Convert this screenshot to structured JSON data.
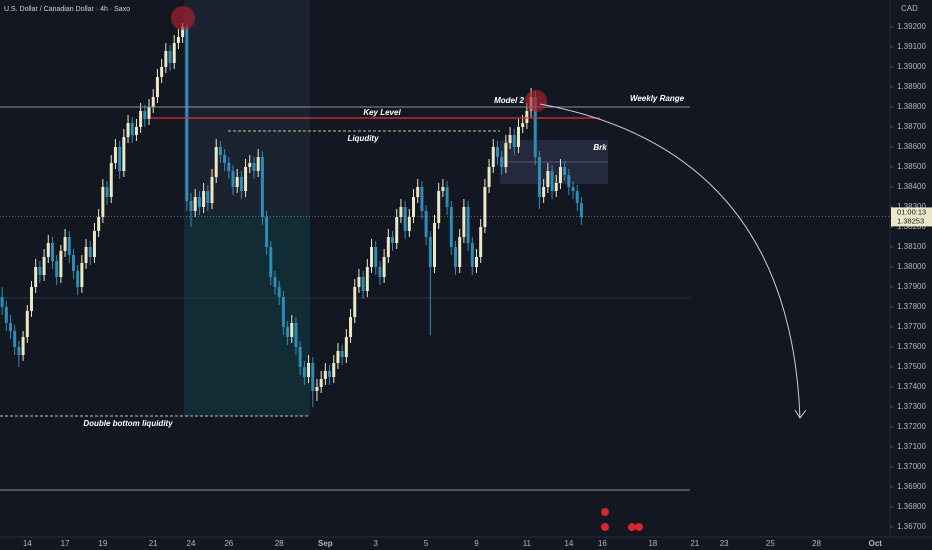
{
  "chart_data": {
    "type": "candlestick",
    "title": "U.S. Dollar / Canadian Dollar · 4h · Saxo",
    "currency": "CAD",
    "up_color": "#ece8c6",
    "down_color": "#2e8db5",
    "ylim": [
      1.3665,
      1.39335
    ],
    "yticks": [
      {
        "value": 1.392,
        "label": "1.39200"
      },
      {
        "value": 1.391,
        "label": "1.39100"
      },
      {
        "value": 1.39,
        "label": "1.39000"
      },
      {
        "value": 1.389,
        "label": "1.38900"
      },
      {
        "value": 1.388,
        "label": "1.38800"
      },
      {
        "value": 1.387,
        "label": "1.38700"
      },
      {
        "value": 1.386,
        "label": "1.38600"
      },
      {
        "value": 1.385,
        "label": "1.38500"
      },
      {
        "value": 1.384,
        "label": "1.38400"
      },
      {
        "value": 1.383,
        "label": "1.38300"
      },
      {
        "value": 1.382,
        "label": "1.38200"
      },
      {
        "value": 1.381,
        "label": "1.38100"
      },
      {
        "value": 1.38,
        "label": "1.38000"
      },
      {
        "value": 1.379,
        "label": "1.37900"
      },
      {
        "value": 1.378,
        "label": "1.37800"
      },
      {
        "value": 1.377,
        "label": "1.37700"
      },
      {
        "value": 1.376,
        "label": "1.37600"
      },
      {
        "value": 1.375,
        "label": "1.37500"
      },
      {
        "value": 1.374,
        "label": "1.37400"
      },
      {
        "value": 1.373,
        "label": "1.37300"
      },
      {
        "value": 1.372,
        "label": "1.37200"
      },
      {
        "value": 1.371,
        "label": "1.37100"
      },
      {
        "value": 1.37,
        "label": "1.37000"
      },
      {
        "value": 1.369,
        "label": "1.36900"
      },
      {
        "value": 1.368,
        "label": "1.36800"
      },
      {
        "value": 1.367,
        "label": "1.36700"
      }
    ],
    "current_price": {
      "value": 1.38253,
      "label": "1.38253",
      "countdown": "01:00:13"
    },
    "annotations": {
      "key_level": "Key Level",
      "liquidity": "Liqudity",
      "model": "Model 2",
      "weekly_range": "Weekly Range",
      "break": "Brk",
      "double_bottom": "Double bottom liquidity"
    },
    "categories": [
      null,
      null,
      null,
      null,
      null,
      null,
      "14",
      null,
      null,
      null,
      null,
      null,
      null,
      null,
      null,
      "17",
      null,
      null,
      null,
      null,
      null,
      null,
      null,
      null,
      "19",
      null,
      null,
      null,
      null,
      null,
      null,
      null,
      null,
      null,
      null,
      null,
      "21",
      null,
      null,
      null,
      null,
      null,
      null,
      null,
      null,
      "24",
      null,
      null,
      null,
      null,
      null,
      null,
      null,
      null,
      "26",
      null,
      null,
      null,
      null,
      null,
      null,
      null,
      null,
      null,
      null,
      null,
      "28",
      null,
      null,
      null,
      null,
      null,
      null,
      null,
      null,
      null,
      null,
      "Sep",
      null,
      null,
      null,
      null,
      null,
      null,
      null,
      null,
      null,
      null,
      null,
      "3",
      null,
      null,
      null,
      null,
      null,
      null,
      null,
      null,
      null,
      null,
      null,
      "5",
      null,
      null,
      null,
      null,
      null,
      null,
      null,
      null,
      null,
      null,
      null,
      "9",
      null,
      null,
      null,
      null,
      null,
      null,
      null,
      null,
      null,
      null,
      null,
      "11",
      null,
      null,
      null,
      null,
      null,
      null,
      null,
      null,
      null,
      "14",
      null,
      null,
      null,
      null,
      null,
      null,
      null,
      "16",
      null,
      null,
      null,
      null,
      null,
      null,
      null,
      null,
      null,
      null,
      null,
      "18",
      null,
      null,
      null,
      null,
      null,
      null,
      null,
      null,
      null,
      "21",
      null,
      null,
      null,
      null,
      null,
      null,
      "23",
      null,
      null,
      null,
      null,
      null,
      null,
      null,
      null,
      null,
      null,
      "25",
      null,
      null,
      null,
      null,
      null,
      null,
      null,
      null,
      null,
      null,
      "28",
      null,
      null,
      null,
      null,
      null,
      null,
      null,
      null,
      null,
      null,
      null,
      null,
      null,
      "Oct",
      null,
      null,
      null
    ],
    "candles": [
      [
        1.3785,
        1.379,
        1.3776,
        1.378
      ],
      [
        1.378,
        1.3783,
        1.3768,
        1.3772
      ],
      [
        1.3772,
        1.3776,
        1.3764,
        1.3768
      ],
      [
        1.3768,
        1.3771,
        1.3756,
        1.376
      ],
      [
        1.376,
        1.3763,
        1.375,
        1.3756
      ],
      [
        1.3756,
        1.3768,
        1.3753,
        1.3765
      ],
      [
        1.3765,
        1.3781,
        1.3762,
        1.3778
      ],
      [
        1.3778,
        1.3793,
        1.3775,
        1.379
      ],
      [
        1.379,
        1.3804,
        1.3787,
        1.38
      ],
      [
        1.38,
        1.3803,
        1.3792,
        1.3796
      ],
      [
        1.3796,
        1.3809,
        1.3793,
        1.3805
      ],
      [
        1.3805,
        1.3816,
        1.3802,
        1.3812
      ],
      [
        1.3812,
        1.3815,
        1.3799,
        1.3803
      ],
      [
        1.3803,
        1.3806,
        1.3791,
        1.3795
      ],
      [
        1.3795,
        1.3811,
        1.3792,
        1.3808
      ],
      [
        1.3808,
        1.3819,
        1.3805,
        1.3815
      ],
      [
        1.3815,
        1.3818,
        1.3802,
        1.3806
      ],
      [
        1.3806,
        1.3809,
        1.3794,
        1.3798
      ],
      [
        1.3798,
        1.3801,
        1.3786,
        1.379
      ],
      [
        1.379,
        1.3806,
        1.3787,
        1.3802
      ],
      [
        1.3802,
        1.3814,
        1.3799,
        1.381
      ],
      [
        1.381,
        1.3813,
        1.3801,
        1.3805
      ],
      [
        1.3805,
        1.3822,
        1.3802,
        1.3818
      ],
      [
        1.3818,
        1.3829,
        1.3815,
        1.3825
      ],
      [
        1.3825,
        1.3844,
        1.3822,
        1.384
      ],
      [
        1.384,
        1.3843,
        1.3831,
        1.3835
      ],
      [
        1.3835,
        1.3856,
        1.3832,
        1.3852
      ],
      [
        1.3852,
        1.3864,
        1.3849,
        1.386
      ],
      [
        1.386,
        1.3863,
        1.3844,
        1.3848
      ],
      [
        1.3848,
        1.3869,
        1.3845,
        1.3865
      ],
      [
        1.3865,
        1.3876,
        1.3862,
        1.3872
      ],
      [
        1.3872,
        1.3875,
        1.3862,
        1.3866
      ],
      [
        1.3866,
        1.3874,
        1.3863,
        1.387
      ],
      [
        1.387,
        1.3882,
        1.3867,
        1.3878
      ],
      [
        1.3878,
        1.3881,
        1.387,
        1.3874
      ],
      [
        1.3874,
        1.3884,
        1.3871,
        1.388
      ],
      [
        1.388,
        1.3889,
        1.3877,
        1.3885
      ],
      [
        1.3885,
        1.3899,
        1.3882,
        1.3895
      ],
      [
        1.3895,
        1.3904,
        1.3892,
        1.39
      ],
      [
        1.39,
        1.3912,
        1.3897,
        1.3908
      ],
      [
        1.3908,
        1.3911,
        1.3898,
        1.3902
      ],
      [
        1.3902,
        1.3916,
        1.3899,
        1.3912
      ],
      [
        1.3912,
        1.3919,
        1.3909,
        1.3915
      ],
      [
        1.3915,
        1.3922,
        1.3912,
        1.392
      ],
      [
        1.392,
        1.3922,
        1.3828,
        1.3833
      ],
      [
        1.3833,
        1.3837,
        1.382,
        1.3828
      ],
      [
        1.3828,
        1.3839,
        1.3825,
        1.3835
      ],
      [
        1.3835,
        1.3838,
        1.3826,
        1.383
      ],
      [
        1.383,
        1.3842,
        1.3827,
        1.3838
      ],
      [
        1.3838,
        1.3841,
        1.3828,
        1.3832
      ],
      [
        1.3832,
        1.3849,
        1.3829,
        1.3845
      ],
      [
        1.3845,
        1.3864,
        1.3842,
        1.386
      ],
      [
        1.386,
        1.3863,
        1.3852,
        1.3856
      ],
      [
        1.3856,
        1.3859,
        1.3848,
        1.3852
      ],
      [
        1.3852,
        1.3855,
        1.3844,
        1.3848
      ],
      [
        1.3848,
        1.3851,
        1.3836,
        1.384
      ],
      [
        1.384,
        1.3849,
        1.3837,
        1.3845
      ],
      [
        1.3845,
        1.3848,
        1.3834,
        1.3838
      ],
      [
        1.3838,
        1.3854,
        1.3835,
        1.385
      ],
      [
        1.385,
        1.3856,
        1.3847,
        1.3852
      ],
      [
        1.3852,
        1.3855,
        1.3844,
        1.3848
      ],
      [
        1.3848,
        1.3859,
        1.3845,
        1.3855
      ],
      [
        1.3855,
        1.3858,
        1.3821,
        1.3825
      ],
      [
        1.3825,
        1.3828,
        1.3806,
        1.381
      ],
      [
        1.381,
        1.3813,
        1.3791,
        1.3795
      ],
      [
        1.3795,
        1.3798,
        1.3786,
        1.379
      ],
      [
        1.379,
        1.3793,
        1.3781,
        1.3785
      ],
      [
        1.3785,
        1.3788,
        1.3766,
        1.377
      ],
      [
        1.377,
        1.3773,
        1.3761,
        1.3765
      ],
      [
        1.3765,
        1.3776,
        1.3762,
        1.3772
      ],
      [
        1.3772,
        1.3775,
        1.3756,
        1.376
      ],
      [
        1.376,
        1.3763,
        1.3746,
        1.375
      ],
      [
        1.375,
        1.3753,
        1.3741,
        1.3745
      ],
      [
        1.3745,
        1.3756,
        1.3742,
        1.3752
      ],
      [
        1.3752,
        1.3755,
        1.373,
        1.3738
      ],
      [
        1.3738,
        1.3744,
        1.3733,
        1.374
      ],
      [
        1.374,
        1.3748,
        1.3737,
        1.3744
      ],
      [
        1.3744,
        1.3752,
        1.3741,
        1.3748
      ],
      [
        1.3748,
        1.3751,
        1.3741,
        1.3745
      ],
      [
        1.3745,
        1.3756,
        1.3742,
        1.3752
      ],
      [
        1.3752,
        1.3762,
        1.3749,
        1.3758
      ],
      [
        1.3758,
        1.3761,
        1.3751,
        1.3755
      ],
      [
        1.3755,
        1.3769,
        1.3752,
        1.3765
      ],
      [
        1.3765,
        1.3779,
        1.3762,
        1.3775
      ],
      [
        1.3775,
        1.3794,
        1.3772,
        1.379
      ],
      [
        1.379,
        1.3799,
        1.3787,
        1.3795
      ],
      [
        1.3795,
        1.3798,
        1.3784,
        1.3788
      ],
      [
        1.3788,
        1.3804,
        1.3785,
        1.38
      ],
      [
        1.38,
        1.3814,
        1.3797,
        1.381
      ],
      [
        1.381,
        1.3813,
        1.3796,
        1.38
      ],
      [
        1.38,
        1.3803,
        1.3791,
        1.3795
      ],
      [
        1.3795,
        1.3809,
        1.3792,
        1.3805
      ],
      [
        1.3805,
        1.3819,
        1.3802,
        1.3815
      ],
      [
        1.3815,
        1.3818,
        1.3808,
        1.3812
      ],
      [
        1.3812,
        1.3829,
        1.3809,
        1.3825
      ],
      [
        1.3825,
        1.3834,
        1.3822,
        1.383
      ],
      [
        1.383,
        1.3833,
        1.3814,
        1.3818
      ],
      [
        1.3818,
        1.3829,
        1.3815,
        1.3825
      ],
      [
        1.3825,
        1.3839,
        1.3822,
        1.3835
      ],
      [
        1.3835,
        1.3844,
        1.3832,
        1.384
      ],
      [
        1.384,
        1.3843,
        1.3824,
        1.3828
      ],
      [
        1.3828,
        1.3831,
        1.3811,
        1.3815
      ],
      [
        1.3815,
        1.3818,
        1.3766,
        1.38
      ],
      [
        1.38,
        1.3826,
        1.3797,
        1.3822
      ],
      [
        1.3822,
        1.3842,
        1.3819,
        1.3838
      ],
      [
        1.3838,
        1.3844,
        1.3835,
        1.384
      ],
      [
        1.384,
        1.3843,
        1.3826,
        1.383
      ],
      [
        1.383,
        1.3833,
        1.3806,
        1.381
      ],
      [
        1.381,
        1.3813,
        1.3796,
        1.38
      ],
      [
        1.38,
        1.3819,
        1.3797,
        1.3815
      ],
      [
        1.3815,
        1.3834,
        1.3812,
        1.383
      ],
      [
        1.383,
        1.3833,
        1.3808,
        1.3812
      ],
      [
        1.3812,
        1.3815,
        1.3796,
        1.38
      ],
      [
        1.38,
        1.3809,
        1.3797,
        1.3805
      ],
      [
        1.3805,
        1.3824,
        1.3802,
        1.382
      ],
      [
        1.382,
        1.3844,
        1.3817,
        1.384
      ],
      [
        1.384,
        1.3854,
        1.3837,
        1.385
      ],
      [
        1.385,
        1.3864,
        1.3847,
        1.386
      ],
      [
        1.386,
        1.3863,
        1.3851,
        1.3855
      ],
      [
        1.3855,
        1.3858,
        1.3846,
        1.385
      ],
      [
        1.385,
        1.3866,
        1.3847,
        1.3862
      ],
      [
        1.3862,
        1.387,
        1.3859,
        1.3866
      ],
      [
        1.3866,
        1.3869,
        1.3856,
        1.386
      ],
      [
        1.386,
        1.3874,
        1.3857,
        1.387
      ],
      [
        1.387,
        1.3876,
        1.3867,
        1.3872
      ],
      [
        1.3872,
        1.3882,
        1.3869,
        1.3878
      ],
      [
        1.3878,
        1.38895,
        1.3875,
        1.3885
      ],
      [
        1.3885,
        1.3888,
        1.3851,
        1.3855
      ],
      [
        1.3855,
        1.3858,
        1.3829,
        1.3835
      ],
      [
        1.3835,
        1.3844,
        1.3832,
        1.384
      ],
      [
        1.384,
        1.3852,
        1.3837,
        1.3848
      ],
      [
        1.3848,
        1.3851,
        1.3834,
        1.3838
      ],
      [
        1.3838,
        1.3846,
        1.3835,
        1.3842
      ],
      [
        1.3842,
        1.3854,
        1.3839,
        1.385
      ],
      [
        1.385,
        1.3853,
        1.3843,
        1.3846
      ],
      [
        1.3846,
        1.3849,
        1.3836,
        1.384
      ],
      [
        1.384,
        1.3843,
        1.3834,
        1.3838
      ],
      [
        1.3838,
        1.3841,
        1.3828,
        1.3832
      ],
      [
        1.3832,
        1.3835,
        1.3821,
        1.3825
      ],
      null,
      null,
      null,
      null,
      null,
      null,
      null,
      null,
      null,
      null,
      null,
      null,
      null,
      null,
      null,
      null,
      null,
      null,
      null,
      null,
      null,
      null,
      null,
      null,
      null,
      null,
      null,
      null,
      null,
      null,
      null,
      null,
      null,
      null,
      null,
      null,
      null,
      null,
      null,
      null,
      null,
      null,
      null,
      null,
      null,
      null,
      null,
      null,
      null,
      null,
      null,
      null,
      null,
      null,
      null,
      null,
      null,
      null,
      null,
      null,
      null,
      null,
      null,
      null,
      null,
      null,
      null,
      null,
      null,
      null,
      null,
      null,
      null
    ]
  }
}
